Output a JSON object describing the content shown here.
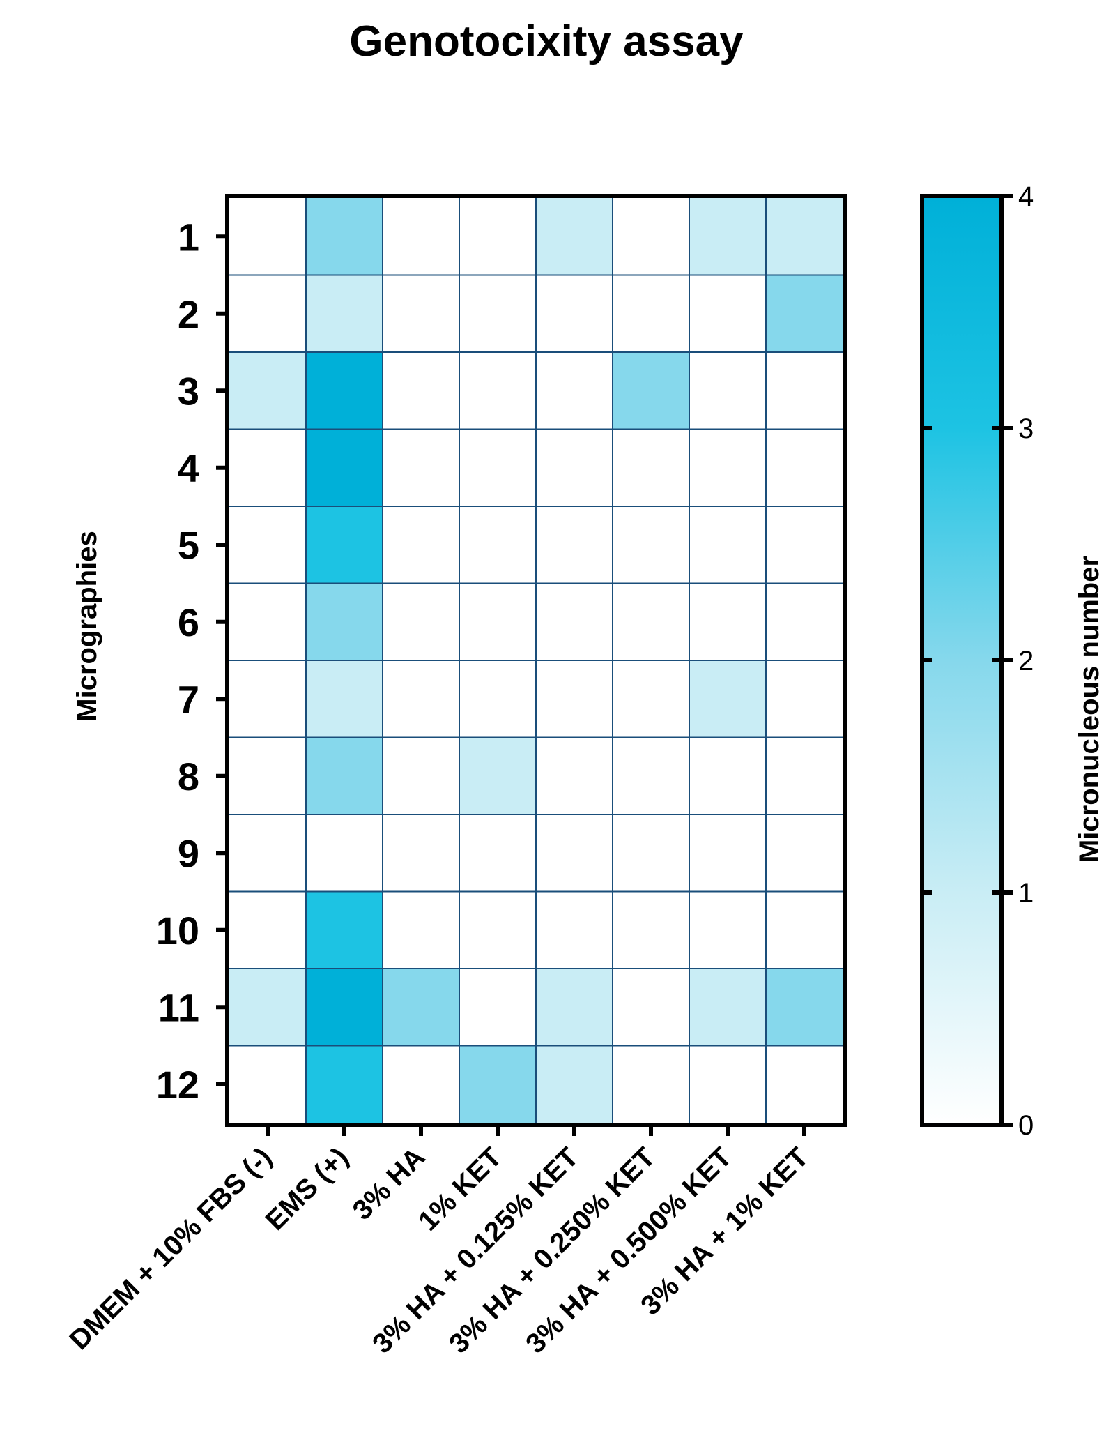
{
  "chart_data": {
    "type": "heatmap",
    "title": "Genotocixity assay",
    "ylabel": "Micrographies",
    "xlabel": "",
    "columns": [
      "DMEM + 10% FBS (-)",
      "EMS (+)",
      "3% HA",
      "1% KET",
      "3% HA + 0.125% KET",
      "3% HA + 0.250% KET",
      "3% HA + 0.500% KET",
      "3% HA + 1% KET"
    ],
    "rows": [
      "1",
      "2",
      "3",
      "4",
      "5",
      "6",
      "7",
      "8",
      "9",
      "10",
      "11",
      "12"
    ],
    "values": [
      [
        0,
        2,
        0,
        0,
        1,
        0,
        1,
        1
      ],
      [
        0,
        1,
        0,
        0,
        0,
        0,
        0,
        2
      ],
      [
        1,
        4,
        0,
        0,
        0,
        2,
        0,
        0
      ],
      [
        0,
        4,
        0,
        0,
        0,
        0,
        0,
        0
      ],
      [
        0,
        3,
        0,
        0,
        0,
        0,
        0,
        0
      ],
      [
        0,
        2,
        0,
        0,
        0,
        0,
        0,
        0
      ],
      [
        0,
        1,
        0,
        0,
        0,
        0,
        1,
        0
      ],
      [
        0,
        2,
        0,
        1,
        0,
        0,
        0,
        0
      ],
      [
        0,
        0,
        0,
        0,
        0,
        0,
        0,
        0
      ],
      [
        0,
        3,
        0,
        0,
        0,
        0,
        0,
        0
      ],
      [
        1,
        4,
        2,
        0,
        1,
        0,
        1,
        2
      ],
      [
        0,
        3,
        0,
        2,
        1,
        0,
        0,
        0
      ]
    ],
    "colorbar": {
      "label": "Micronucleous number",
      "min": 0,
      "max": 4,
      "ticks": [
        "0",
        "1",
        "2",
        "3",
        "4"
      ],
      "colors": [
        "#ffffff",
        "#c9edf5",
        "#86d8ec",
        "#1dc3e3",
        "#00b0d8"
      ]
    },
    "grid_line_color": "#1a4e7a",
    "legend_position": "right"
  }
}
